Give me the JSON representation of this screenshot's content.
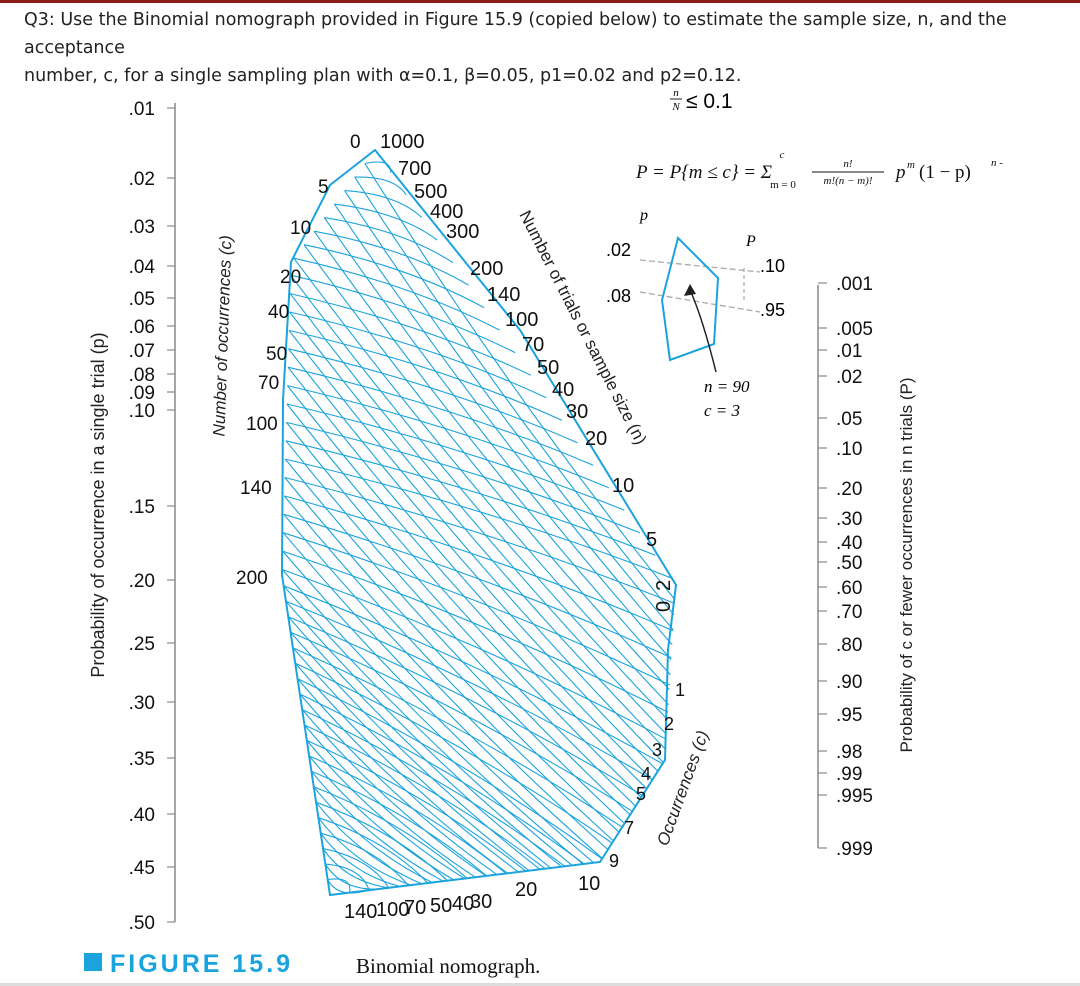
{
  "question": {
    "line1": "Q3: Use the Binomial nomograph provided in Figure 15.9 (copied below) to estimate the sample size, n, and the acceptance",
    "line2": "number, c, for a single sampling plan with α=0.1, β=0.05, p1=0.02 and p2=0.12."
  },
  "figure": {
    "number": "FIGURE 15.9",
    "title": "Binomial nomograph.",
    "condition": "≤ 0.1",
    "condition_frac_num": "n",
    "condition_frac_den": "N",
    "formula": "P = P{m ≤ c} = Σ",
    "formula_upper": "c",
    "formula_lower": "m = 0",
    "formula_frac_num": "n!",
    "formula_frac_den": "m!(n − m)!",
    "formula_tail": "p",
    "formula_tail_exp": "m",
    "formula_tail2": "(1 − p)",
    "formula_tail2_exp": "n -",
    "left_axis_label": "Probability of occurrence in a single trial (p)",
    "left_ticks": [
      ".01",
      ".02",
      ".03",
      ".04",
      ".05",
      ".06",
      ".07",
      ".08",
      ".09",
      ".10",
      ".15",
      ".20",
      ".25",
      ".30",
      ".35",
      ".40",
      ".45",
      ".50"
    ],
    "right_axis_label": "Probability of c or fewer occurrences in n trials (P)",
    "right_ticks": [
      ".001",
      ".005",
      ".01",
      ".02",
      ".05",
      ".10",
      ".20",
      ".30",
      ".40",
      ".50",
      ".60",
      ".70",
      ".80",
      ".90",
      ".95",
      ".98",
      ".99",
      ".995",
      ".999"
    ],
    "c_label_left": "Number of occurrences (c)",
    "c_left_values": [
      "0",
      "5",
      "10",
      "20",
      "40",
      "50",
      "70",
      "100",
      "140",
      "200"
    ],
    "n_label": "Number of trials or sample size (n)",
    "n_values": [
      "1000",
      "700",
      "500",
      "400",
      "300",
      "200",
      "140",
      "100",
      "70",
      "50",
      "40",
      "30",
      "20",
      "10",
      "5",
      "2",
      "0"
    ],
    "c_label_right": "Occurrences (c)",
    "c_right_values": [
      "1",
      "2",
      "3",
      "4",
      "5",
      "7",
      "9"
    ],
    "bottom_n_values": [
      "140",
      "100",
      "70",
      "50",
      "40",
      "30",
      "20",
      "10"
    ],
    "inset": {
      "p_label": "p",
      "P_label": "P",
      "p1": ".02",
      "p2": ".08",
      "P1": ".10",
      "P2": ".95",
      "n_text": "n = 90",
      "c_text": "c = 3"
    }
  }
}
